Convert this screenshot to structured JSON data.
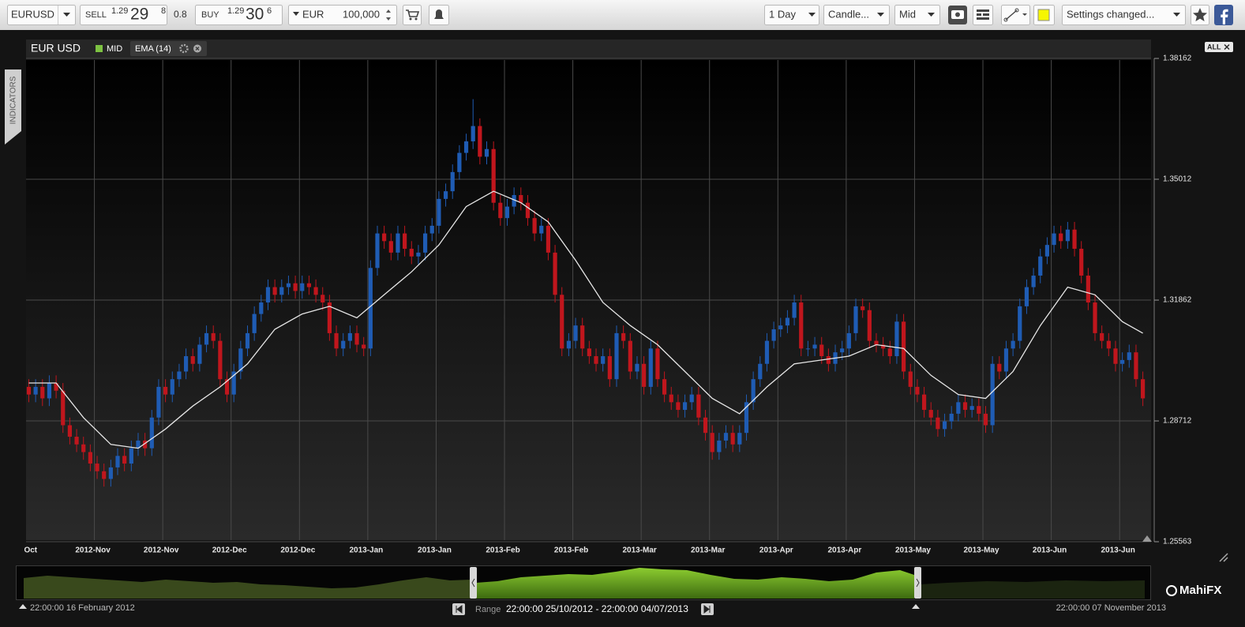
{
  "toolbar": {
    "symbol": "EURUSD",
    "sell": {
      "label": "SELL",
      "big": "1.29",
      "pips": "29",
      "fraction": "8"
    },
    "spread": "0.8",
    "buy": {
      "label": "BUY",
      "big": "1.29",
      "pips": "30",
      "fraction": "6"
    },
    "currency": "EUR",
    "amount": "100,000",
    "interval": "1 Day",
    "chart_style": "Candle...",
    "price_type": "Mid",
    "status": "Settings changed..."
  },
  "side_tab": "INDICATORS",
  "all_button": "ALL",
  "chart_data": {
    "type": "candlestick",
    "title": "EUR USD",
    "price_label": "MID",
    "price_label_color": "#7dc242",
    "up_color": "#1f5cb4",
    "down_color": "#c0161d",
    "grid": true,
    "ylim": [
      1.25563,
      1.38162
    ],
    "yticks": [
      1.38162,
      1.35012,
      1.31862,
      1.28712,
      1.25563
    ],
    "xlim": [
      -0.4,
      164.2
    ],
    "xticks": [
      {
        "value": 0.5,
        "label": "Oct"
      },
      {
        "value": 9.6,
        "label": "2012-Nov"
      },
      {
        "value": 19.6,
        "label": "2012-Nov"
      },
      {
        "value": 29.6,
        "label": "2012-Dec"
      },
      {
        "value": 39.6,
        "label": "2012-Dec"
      },
      {
        "value": 49.6,
        "label": "2013-Jan"
      },
      {
        "value": 59.6,
        "label": "2013-Jan"
      },
      {
        "value": 69.6,
        "label": "2013-Feb"
      },
      {
        "value": 79.6,
        "label": "2013-Feb"
      },
      {
        "value": 89.6,
        "label": "2013-Mar"
      },
      {
        "value": 99.6,
        "label": "2013-Mar"
      },
      {
        "value": 109.6,
        "label": "2013-Apr"
      },
      {
        "value": 119.6,
        "label": "2013-Apr"
      },
      {
        "value": 129.6,
        "label": "2013-May"
      },
      {
        "value": 139.6,
        "label": "2013-May"
      },
      {
        "value": 149.6,
        "label": "2013-Jun"
      },
      {
        "value": 159.6,
        "label": "2013-Jun"
      }
    ],
    "series": [
      {
        "open": [
          1.296,
          1.294,
          1.296,
          1.293,
          1.297,
          1.295,
          1.286,
          1.283,
          1.281,
          1.279,
          1.276,
          1.274,
          1.272,
          1.275,
          1.278,
          1.276,
          1.28,
          1.282,
          1.28,
          1.288,
          1.296,
          1.294,
          1.298,
          1.3,
          1.304,
          1.302,
          1.307,
          1.31,
          1.308,
          1.298,
          1.294,
          1.3,
          1.306,
          1.31,
          1.315,
          1.318,
          1.322,
          1.32,
          1.322,
          1.323,
          1.321,
          1.323,
          1.322,
          1.32,
          1.318,
          1.31,
          1.306,
          1.308,
          1.31,
          1.307,
          1.306,
          1.327,
          1.336,
          1.334,
          1.331,
          1.336,
          1.332,
          1.33,
          1.331,
          1.336,
          1.338,
          1.345,
          1.347,
          1.352,
          1.357,
          1.36,
          1.364,
          1.356,
          1.358,
          1.344,
          1.34,
          1.343,
          1.346,
          1.344,
          1.34,
          1.336,
          1.338,
          1.331,
          1.32,
          1.306,
          1.308,
          1.312,
          1.306,
          1.304,
          1.302,
          1.304,
          1.298,
          1.31,
          1.308,
          1.3,
          1.302,
          1.296,
          1.306,
          1.298,
          1.294,
          1.292,
          1.29,
          1.292,
          1.294,
          1.288,
          1.284,
          1.279,
          1.282,
          1.284,
          1.281,
          1.284,
          1.292,
          1.298,
          1.302,
          1.308,
          1.311,
          1.312,
          1.314,
          1.318,
          1.306,
          1.306,
          1.307,
          1.304,
          1.302,
          1.305,
          1.306,
          1.31,
          1.317,
          1.316,
          1.308,
          1.307,
          1.306,
          1.304,
          1.313,
          1.3,
          1.296,
          1.294,
          1.29,
          1.288,
          1.285,
          1.287,
          1.289,
          1.292,
          1.29,
          1.291,
          1.289,
          1.286,
          1.302,
          1.3,
          1.306,
          1.308,
          1.317,
          1.322,
          1.325,
          1.33,
          1.333,
          1.336,
          1.334,
          1.337,
          1.332,
          1.325,
          1.318,
          1.31,
          1.308,
          1.306,
          1.302,
          1.303,
          1.305,
          1.298
        ],
        "high": [
          1.298,
          1.298,
          1.298,
          1.299,
          1.299,
          1.297,
          1.288,
          1.285,
          1.283,
          1.281,
          1.278,
          1.276,
          1.277,
          1.28,
          1.28,
          1.282,
          1.284,
          1.284,
          1.29,
          1.298,
          1.298,
          1.3,
          1.302,
          1.306,
          1.306,
          1.309,
          1.312,
          1.312,
          1.31,
          1.3,
          1.302,
          1.308,
          1.312,
          1.317,
          1.32,
          1.324,
          1.324,
          1.324,
          1.325,
          1.325,
          1.325,
          1.325,
          1.324,
          1.322,
          1.32,
          1.312,
          1.31,
          1.312,
          1.312,
          1.309,
          1.329,
          1.338,
          1.338,
          1.336,
          1.338,
          1.338,
          1.334,
          1.333,
          1.338,
          1.34,
          1.347,
          1.349,
          1.354,
          1.359,
          1.362,
          1.371,
          1.366,
          1.36,
          1.36,
          1.346,
          1.345,
          1.348,
          1.348,
          1.346,
          1.342,
          1.34,
          1.34,
          1.333,
          1.322,
          1.31,
          1.314,
          1.314,
          1.308,
          1.306,
          1.306,
          1.306,
          1.312,
          1.312,
          1.31,
          1.304,
          1.304,
          1.308,
          1.308,
          1.3,
          1.296,
          1.294,
          1.294,
          1.296,
          1.296,
          1.29,
          1.286,
          1.284,
          1.286,
          1.286,
          1.286,
          1.294,
          1.3,
          1.304,
          1.31,
          1.313,
          1.314,
          1.316,
          1.32,
          1.32,
          1.308,
          1.309,
          1.309,
          1.306,
          1.307,
          1.308,
          1.312,
          1.319,
          1.319,
          1.318,
          1.31,
          1.309,
          1.308,
          1.315,
          1.315,
          1.302,
          1.298,
          1.296,
          1.292,
          1.29,
          1.289,
          1.291,
          1.294,
          1.294,
          1.293,
          1.293,
          1.291,
          1.304,
          1.304,
          1.308,
          1.31,
          1.319,
          1.324,
          1.327,
          1.332,
          1.335,
          1.338,
          1.338,
          1.339,
          1.339,
          1.334,
          1.327,
          1.32,
          1.312,
          1.31,
          1.308,
          1.305,
          1.307,
          1.307,
          1.3
        ],
        "low": [
          1.292,
          1.292,
          1.291,
          1.291,
          1.293,
          1.284,
          1.281,
          1.279,
          1.277,
          1.274,
          1.272,
          1.27,
          1.27,
          1.273,
          1.274,
          1.274,
          1.278,
          1.278,
          1.278,
          1.286,
          1.292,
          1.292,
          1.296,
          1.298,
          1.3,
          1.3,
          1.305,
          1.306,
          1.296,
          1.292,
          1.292,
          1.298,
          1.304,
          1.308,
          1.313,
          1.316,
          1.318,
          1.318,
          1.32,
          1.319,
          1.319,
          1.32,
          1.318,
          1.316,
          1.308,
          1.304,
          1.304,
          1.306,
          1.305,
          1.304,
          1.304,
          1.325,
          1.332,
          1.329,
          1.329,
          1.33,
          1.328,
          1.328,
          1.329,
          1.334,
          1.336,
          1.343,
          1.345,
          1.35,
          1.355,
          1.358,
          1.354,
          1.354,
          1.342,
          1.338,
          1.338,
          1.341,
          1.342,
          1.338,
          1.334,
          1.334,
          1.329,
          1.318,
          1.304,
          1.304,
          1.306,
          1.304,
          1.302,
          1.3,
          1.3,
          1.296,
          1.296,
          1.306,
          1.298,
          1.298,
          1.294,
          1.294,
          1.296,
          1.292,
          1.29,
          1.288,
          1.288,
          1.29,
          1.286,
          1.282,
          1.277,
          1.277,
          1.28,
          1.279,
          1.279,
          1.282,
          1.29,
          1.296,
          1.3,
          1.306,
          1.309,
          1.31,
          1.312,
          1.304,
          1.304,
          1.304,
          1.302,
          1.3,
          1.3,
          1.303,
          1.304,
          1.308,
          1.314,
          1.306,
          1.305,
          1.304,
          1.302,
          1.302,
          1.298,
          1.294,
          1.292,
          1.288,
          1.286,
          1.283,
          1.283,
          1.285,
          1.287,
          1.288,
          1.288,
          1.287,
          1.284,
          1.284,
          1.298,
          1.298,
          1.304,
          1.306,
          1.315,
          1.32,
          1.323,
          1.328,
          1.331,
          1.332,
          1.332,
          1.33,
          1.323,
          1.316,
          1.308,
          1.306,
          1.304,
          1.3,
          1.3,
          1.301,
          1.296,
          1.291
        ],
        "close": [
          1.294,
          1.296,
          1.293,
          1.297,
          1.295,
          1.286,
          1.283,
          1.281,
          1.279,
          1.276,
          1.274,
          1.272,
          1.275,
          1.278,
          1.276,
          1.28,
          1.282,
          1.28,
          1.288,
          1.296,
          1.294,
          1.298,
          1.3,
          1.304,
          1.302,
          1.307,
          1.31,
          1.308,
          1.298,
          1.294,
          1.3,
          1.306,
          1.31,
          1.315,
          1.318,
          1.322,
          1.32,
          1.322,
          1.323,
          1.321,
          1.323,
          1.322,
          1.32,
          1.318,
          1.31,
          1.306,
          1.308,
          1.31,
          1.307,
          1.306,
          1.327,
          1.336,
          1.334,
          1.331,
          1.336,
          1.332,
          1.33,
          1.331,
          1.336,
          1.338,
          1.345,
          1.347,
          1.352,
          1.357,
          1.36,
          1.364,
          1.356,
          1.358,
          1.344,
          1.34,
          1.343,
          1.346,
          1.344,
          1.34,
          1.336,
          1.338,
          1.331,
          1.32,
          1.306,
          1.308,
          1.312,
          1.306,
          1.304,
          1.302,
          1.304,
          1.298,
          1.31,
          1.308,
          1.3,
          1.302,
          1.296,
          1.306,
          1.298,
          1.294,
          1.292,
          1.29,
          1.292,
          1.294,
          1.288,
          1.284,
          1.279,
          1.282,
          1.284,
          1.281,
          1.284,
          1.292,
          1.298,
          1.302,
          1.308,
          1.311,
          1.312,
          1.314,
          1.318,
          1.306,
          1.306,
          1.307,
          1.304,
          1.302,
          1.305,
          1.306,
          1.31,
          1.317,
          1.316,
          1.308,
          1.307,
          1.306,
          1.304,
          1.313,
          1.3,
          1.296,
          1.294,
          1.29,
          1.288,
          1.285,
          1.287,
          1.289,
          1.292,
          1.29,
          1.291,
          1.289,
          1.286,
          1.302,
          1.3,
          1.306,
          1.308,
          1.317,
          1.322,
          1.325,
          1.33,
          1.333,
          1.336,
          1.334,
          1.337,
          1.332,
          1.325,
          1.318,
          1.31,
          1.308,
          1.306,
          1.302,
          1.303,
          1.305,
          1.298,
          1.293
        ]
      }
    ],
    "overlays": [
      {
        "name": "EMA (14)",
        "color": "#e6e6e6",
        "x": [
          0,
          4,
          8,
          12,
          16,
          20,
          24,
          28,
          32,
          36,
          40,
          44,
          48,
          52,
          56,
          60,
          64,
          68,
          72,
          76,
          80,
          84,
          88,
          92,
          96,
          100,
          104,
          108,
          112,
          116,
          120,
          124,
          128,
          132,
          136,
          140,
          144,
          148,
          152,
          156,
          160,
          163
        ],
        "values": [
          1.297,
          1.297,
          1.288,
          1.281,
          1.28,
          1.285,
          1.291,
          1.296,
          1.302,
          1.311,
          1.315,
          1.317,
          1.314,
          1.32,
          1.326,
          1.333,
          1.343,
          1.347,
          1.344,
          1.339,
          1.329,
          1.318,
          1.312,
          1.307,
          1.3,
          1.293,
          1.289,
          1.296,
          1.302,
          1.303,
          1.304,
          1.307,
          1.306,
          1.299,
          1.294,
          1.293,
          1.3,
          1.312,
          1.322,
          1.32,
          1.313,
          1.31
        ]
      }
    ]
  },
  "navigator": {
    "start": "22:00:00 16 February 2012",
    "range_label": "Range",
    "range": "22:00:00 25/10/2012 - 22:00:00 04/07/2013",
    "end": "22:00:00 07 November 2013",
    "brand": "MahiFX"
  }
}
